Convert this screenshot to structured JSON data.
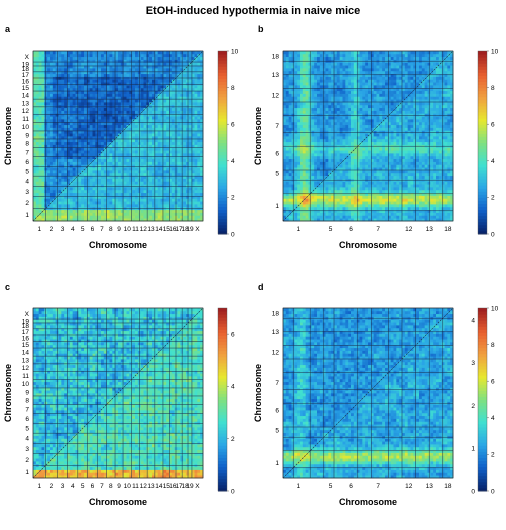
{
  "title": "EtOH-induced hypothermia in naive mice",
  "colormap": [
    "#08246b",
    "#1060c8",
    "#2aa6e6",
    "#40e0d0",
    "#7fe080",
    "#e6e830",
    "#f0a040",
    "#e86030",
    "#a02020"
  ],
  "chart_data": [
    {
      "panel": "a",
      "type": "heatmap",
      "xlabel": "Chromosome",
      "ylabel": "Chromosome",
      "x_ticks": [
        "1",
        "2",
        "3",
        "4",
        "5",
        "6",
        "7",
        "8",
        "9",
        "10",
        "11",
        "12",
        "13",
        "14",
        "15",
        "16",
        "17",
        "18",
        "19",
        "X"
      ],
      "y_ticks": [
        "1",
        "2",
        "3",
        "4",
        "5",
        "6",
        "7",
        "8",
        "9",
        "10",
        "11",
        "12",
        "13",
        "14",
        "15",
        "16",
        "17",
        "18",
        "19",
        "X"
      ],
      "colorbar_ticks": [
        "0",
        "2",
        "4",
        "6",
        "8",
        "10"
      ],
      "colorbar_range": [
        0,
        10
      ],
      "grid": true,
      "diagonal": true
    },
    {
      "panel": "b",
      "type": "heatmap",
      "xlabel": "Chromosome",
      "ylabel": "Chromosome",
      "x_ticks": [
        "1",
        "5",
        "6",
        "7",
        "12",
        "13",
        "18"
      ],
      "y_ticks": [
        "1",
        "5",
        "6",
        "7",
        "12",
        "13",
        "18"
      ],
      "colorbar_ticks": [
        "0",
        "2",
        "4",
        "6",
        "8",
        "10"
      ],
      "colorbar_range": [
        0,
        10
      ],
      "grid": true,
      "diagonal": true
    },
    {
      "panel": "c",
      "type": "heatmap",
      "xlabel": "Chromosome",
      "ylabel": "Chromosome",
      "x_ticks": [
        "1",
        "2",
        "3",
        "4",
        "5",
        "6",
        "7",
        "8",
        "9",
        "10",
        "11",
        "12",
        "13",
        "14",
        "15",
        "16",
        "17",
        "18",
        "19",
        "X"
      ],
      "y_ticks": [
        "1",
        "2",
        "3",
        "4",
        "5",
        "6",
        "7",
        "8",
        "9",
        "10",
        "11",
        "12",
        "13",
        "14",
        "15",
        "16",
        "17",
        "18",
        "19",
        "X"
      ],
      "colorbar_ticks": [
        "0",
        "2",
        "4",
        "6"
      ],
      "colorbar_range": [
        0,
        7
      ],
      "grid": true,
      "diagonal": true
    },
    {
      "panel": "d",
      "type": "heatmap",
      "xlabel": "Chromosome",
      "ylabel": "Chromosome",
      "x_ticks": [
        "1",
        "5",
        "6",
        "7",
        "12",
        "13",
        "18"
      ],
      "y_ticks": [
        "1",
        "5",
        "6",
        "7",
        "12",
        "13",
        "18"
      ],
      "colorbar_ticks": [
        "0",
        "2",
        "4",
        "6",
        "8",
        "10"
      ],
      "colorbar_ticks_left": [
        "0",
        "1",
        "2",
        "3",
        "4"
      ],
      "colorbar_range": [
        0,
        10
      ],
      "grid": true,
      "diagonal": true
    }
  ]
}
